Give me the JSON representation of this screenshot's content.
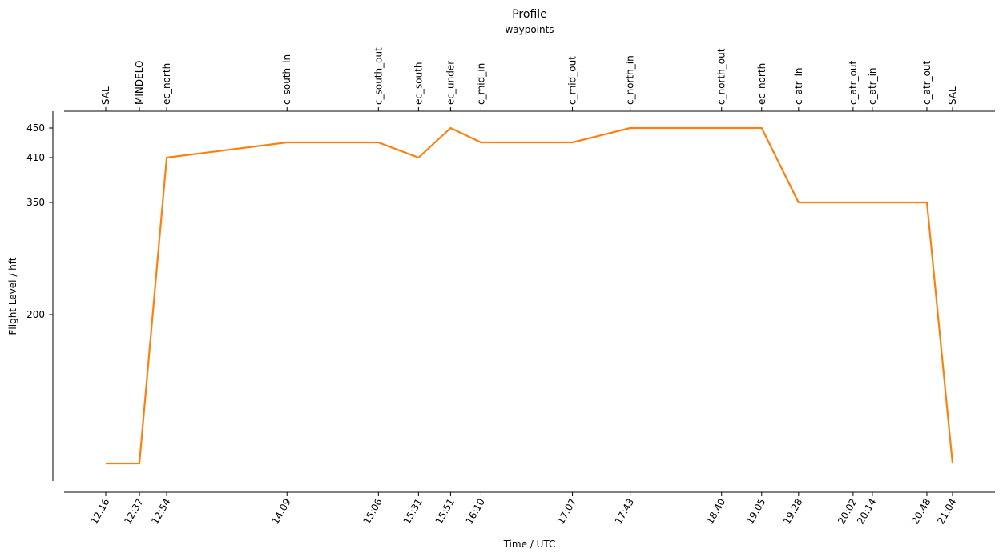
{
  "chart_data": {
    "type": "line",
    "title": "Profile",
    "top_axis_label": "waypoints",
    "xlabel": "Time / UTC",
    "ylabel": "Flight Level / hft",
    "grid": false,
    "line_color": "#ff7f0e",
    "x_start_minutes": 736,
    "x_end_minutes": 1264,
    "ylim": [
      50,
      465
    ],
    "yticks": [
      200,
      350,
      410,
      450
    ],
    "waypoints": [
      {
        "name": "SAL",
        "time": "12:16",
        "fl": 65
      },
      {
        "name": "MINDELO",
        "time": "12:37",
        "fl": 65
      },
      {
        "name": "ec_north",
        "time": "12:54",
        "fl": 410
      },
      {
        "name": "c_south_in",
        "time": "14:09",
        "fl": 430
      },
      {
        "name": "c_south_out",
        "time": "15:06",
        "fl": 430
      },
      {
        "name": "ec_south",
        "time": "15:31",
        "fl": 410
      },
      {
        "name": "ec_under",
        "time": "15:51",
        "fl": 450
      },
      {
        "name": "c_mid_in",
        "time": "16:10",
        "fl": 430
      },
      {
        "name": "c_mid_out",
        "time": "17:07",
        "fl": 430
      },
      {
        "name": "c_north_in",
        "time": "17:43",
        "fl": 450
      },
      {
        "name": "c_north_out",
        "time": "18:40",
        "fl": 450
      },
      {
        "name": "ec_north",
        "time": "19:05",
        "fl": 450
      },
      {
        "name": "c_atr_in",
        "time": "19:28",
        "fl": 350
      },
      {
        "name": "c_atr_out",
        "time": "20:02",
        "fl": 350
      },
      {
        "name": "c_atr_in",
        "time": "20:14",
        "fl": 350
      },
      {
        "name": "c_atr_out",
        "time": "20:48",
        "fl": 350
      },
      {
        "name": "SAL",
        "time": "21:04",
        "fl": 65
      }
    ]
  }
}
